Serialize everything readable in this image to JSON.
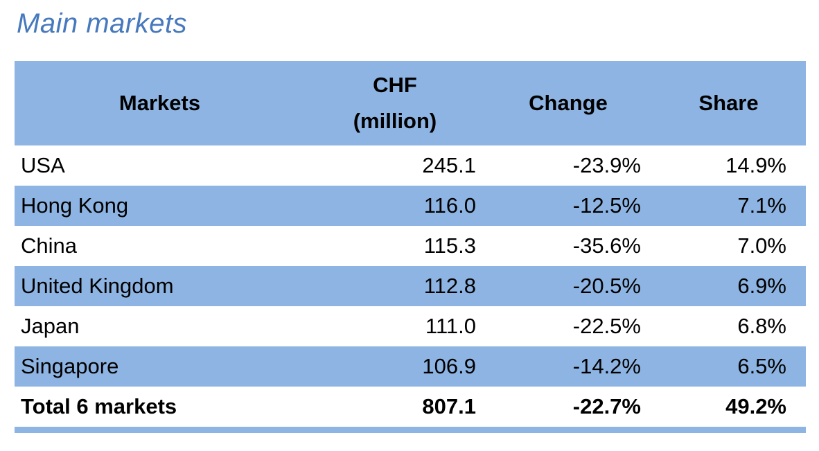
{
  "title": "Main markets",
  "colors": {
    "accent_blue_fill": "#8DB4E2",
    "title_blue": "#4679BD",
    "text": "#000000",
    "background": "#FFFFFF"
  },
  "table": {
    "header": {
      "markets": "Markets",
      "chf_line1": "CHF",
      "chf_line2": "(million)",
      "change": "Change",
      "share": "Share"
    },
    "rows": [
      {
        "market": "USA",
        "chf": "245.1",
        "change": "-23.9%",
        "share": "14.9%"
      },
      {
        "market": "Hong Kong",
        "chf": "116.0",
        "change": "-12.5%",
        "share": "7.1%"
      },
      {
        "market": "China",
        "chf": "115.3",
        "change": "-35.6%",
        "share": "7.0%"
      },
      {
        "market": "United Kingdom",
        "chf": "112.8",
        "change": "-20.5%",
        "share": "6.9%"
      },
      {
        "market": "Japan",
        "chf": "111.0",
        "change": "-22.5%",
        "share": "6.8%"
      },
      {
        "market": "Singapore",
        "chf": "106.9",
        "change": "-14.2%",
        "share": "6.5%"
      }
    ],
    "total": {
      "market": "Total 6 markets",
      "chf": "807.1",
      "change": "-22.7%",
      "share": "49.2%"
    }
  },
  "chart_data": {
    "type": "table",
    "title": "Main markets",
    "columns": [
      "Markets",
      "CHF (million)",
      "Change",
      "Share"
    ],
    "rows": [
      [
        "USA",
        245.1,
        "-23.9%",
        "14.9%"
      ],
      [
        "Hong Kong",
        116.0,
        "-12.5%",
        "7.1%"
      ],
      [
        "China",
        115.3,
        "-35.6%",
        "7.0%"
      ],
      [
        "United Kingdom",
        112.8,
        "-20.5%",
        "6.9%"
      ],
      [
        "Japan",
        111.0,
        "-22.5%",
        "6.8%"
      ],
      [
        "Singapore",
        106.9,
        "-14.2%",
        "6.5%"
      ],
      [
        "Total 6 markets",
        807.1,
        "-22.7%",
        "49.2%"
      ]
    ]
  }
}
